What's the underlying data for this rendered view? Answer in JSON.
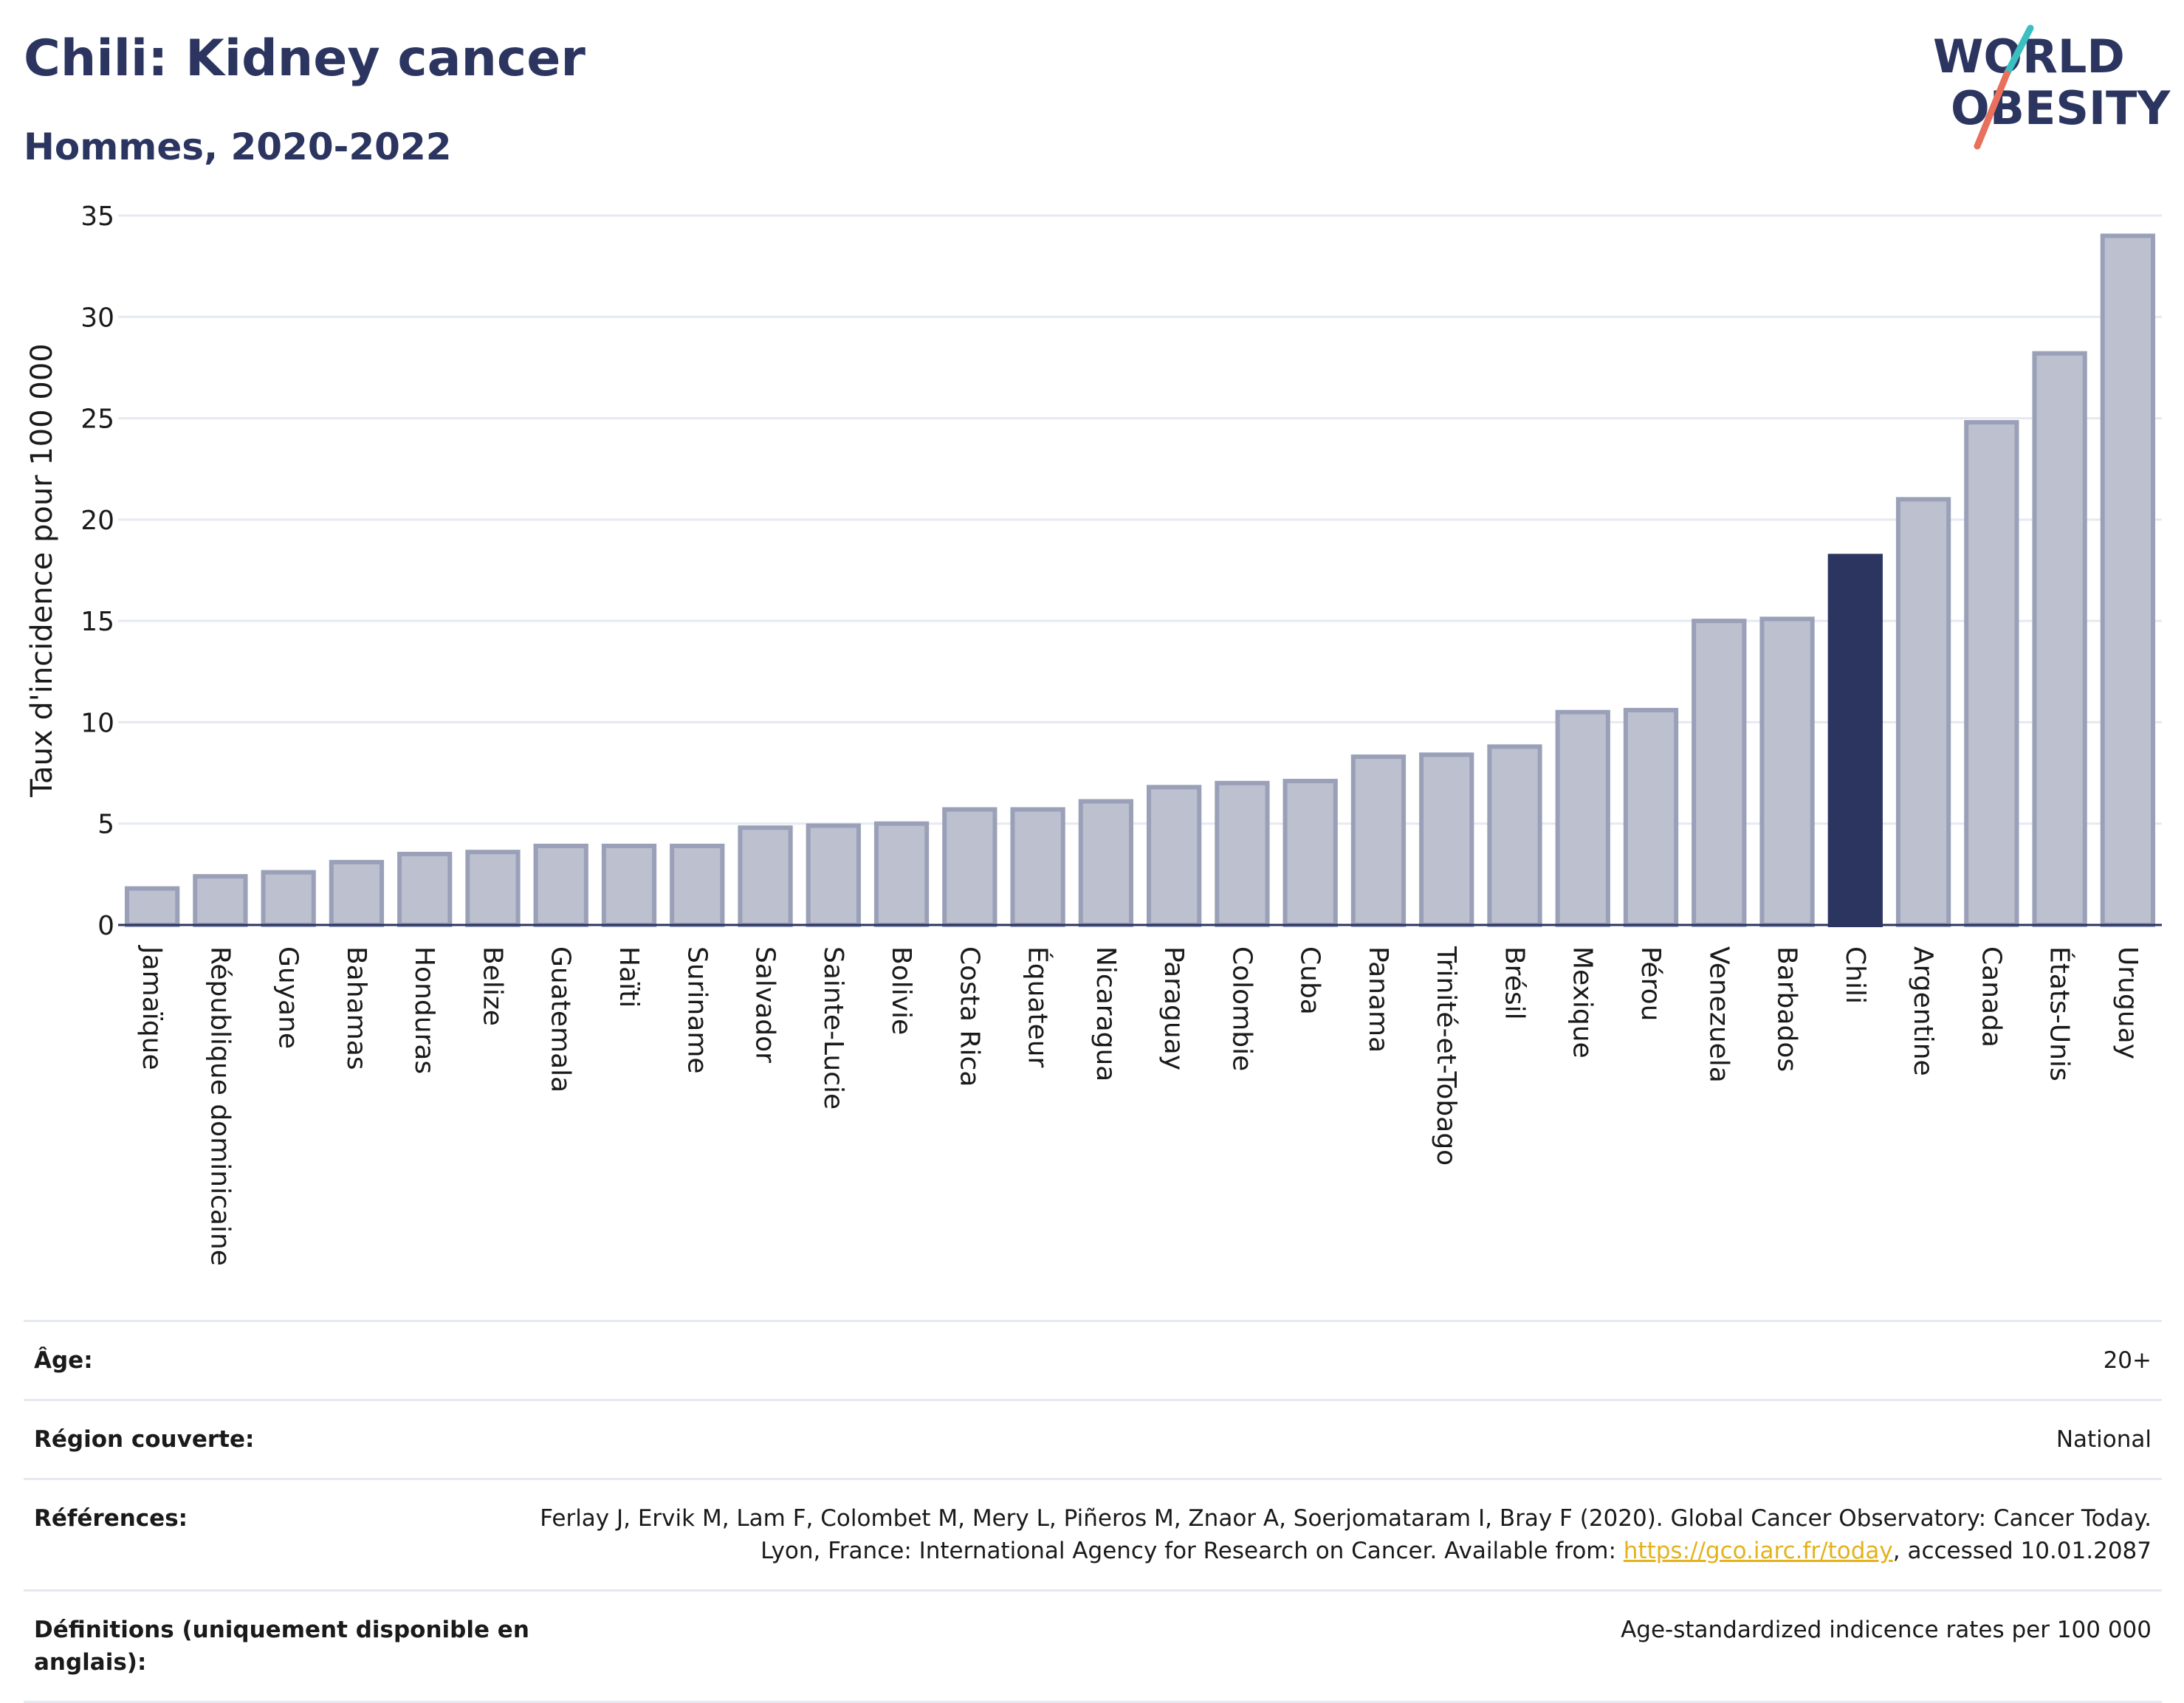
{
  "title": "Chili: Kidney cancer",
  "subtitle": "Hommes, 2020-2022",
  "logo": {
    "line1": "WORLD",
    "line2": "OBESITY"
  },
  "colors": {
    "bar": "#bcc0cf",
    "bar_stroke": "#9aa0b8",
    "highlight": "#2b3560",
    "grid": "#e6e9f0",
    "axis": "#2b3560"
  },
  "chart_data": {
    "type": "bar",
    "ylabel": "Taux d'incidence pour 100 000",
    "ylim": [
      0,
      35
    ],
    "yticks": [
      0,
      5,
      10,
      15,
      20,
      25,
      30,
      35
    ],
    "grid": true,
    "highlight": "Chili",
    "categories": [
      "Jamaïque",
      "République dominicaine",
      "Guyane",
      "Bahamas",
      "Honduras",
      "Belize",
      "Guatemala",
      "Haïti",
      "Suriname",
      "Salvador",
      "Sainte-Lucie",
      "Bolivie",
      "Costa Rica",
      "Équateur",
      "Nicaragua",
      "Paraguay",
      "Colombie",
      "Cuba",
      "Panama",
      "Trinité-et-Tobago",
      "Brésil",
      "Mexique",
      "Pérou",
      "Venezuela",
      "Barbados",
      "Chili",
      "Argentine",
      "Canada",
      "États-Unis",
      "Uruguay"
    ],
    "values": [
      1.8,
      2.4,
      2.6,
      3.1,
      3.5,
      3.6,
      3.9,
      3.9,
      3.9,
      4.8,
      4.9,
      5.0,
      5.7,
      5.7,
      6.1,
      6.8,
      7.0,
      7.1,
      8.3,
      8.4,
      8.8,
      10.5,
      10.6,
      15.0,
      15.1,
      18.2,
      21.0,
      24.8,
      28.2,
      34.0
    ]
  },
  "meta": {
    "age_label": "Âge:",
    "age_value": "20+",
    "region_label": "Région couverte:",
    "region_value": "National",
    "ref_label": "Références:",
    "ref_text_1": "Ferlay J, Ervik M, Lam F, Colombet M, Mery L, Piñeros M, Znaor A, Soerjomataram I, Bray F (2020). Global Cancer Observatory: Cancer Today. Lyon, France: International Agency for Research on Cancer. Available from: ",
    "ref_link": "https://gco.iarc.fr/today",
    "ref_text_2": ", accessed 10.01.2087",
    "def_label": "Définitions (uniquement disponible en anglais):",
    "def_value": "Age-standardized indicence rates per 100 000"
  }
}
